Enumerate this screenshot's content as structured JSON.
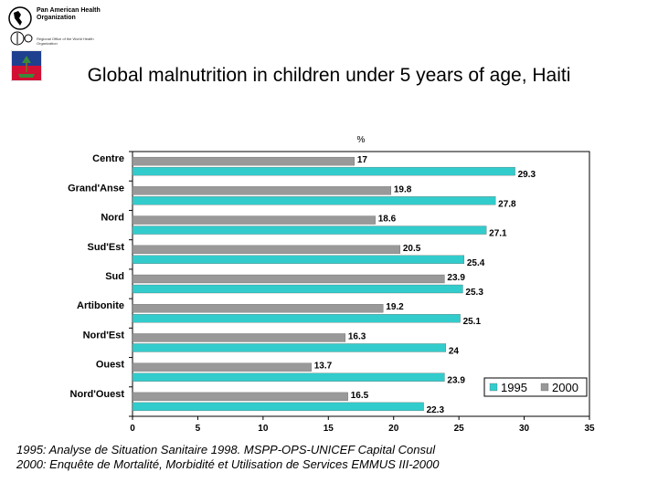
{
  "header": {
    "org_name": "Pan American Health Organization",
    "org_subtitle": "Regional Office of the World Health Organization"
  },
  "chart_data": {
    "type": "bar",
    "orientation": "horizontal",
    "title": "Global malnutrition in children under 5 years of age, Haiti",
    "unit_label": "%",
    "categories": [
      "Centre",
      "Grand'Anse",
      "Nord",
      "Sud'Est",
      "Sud",
      "Artibonite",
      "Nord'Est",
      "Ouest",
      "Nord'Ouest"
    ],
    "series": [
      {
        "name": "2000",
        "color": "#999999",
        "values": [
          17,
          19.8,
          18.6,
          20.5,
          23.9,
          19.2,
          16.3,
          13.7,
          16.5
        ]
      },
      {
        "name": "1995",
        "color": "#33cccc",
        "values": [
          29.3,
          27.8,
          27.1,
          25.4,
          25.3,
          25.1,
          24,
          23.9,
          22.3
        ]
      }
    ],
    "value_labels": [
      [
        "17",
        "19.8",
        "18.6",
        "20.5",
        "23.9",
        "19.2",
        "16.3",
        "13.7",
        "16.5"
      ],
      [
        "29.3",
        "27.8",
        "27.1",
        "25.4",
        "25.3",
        "25.1",
        "24",
        "23.9",
        "22.3"
      ]
    ],
    "legend_order": [
      "1995",
      "2000"
    ],
    "xlim": [
      0,
      35
    ],
    "xticks": [
      0,
      5,
      10,
      15,
      20,
      25,
      30,
      35
    ],
    "grid": false,
    "legend_position": "bottom-right"
  },
  "sources": [
    "1995: Analyse de Situation Sanitaire 1998. MSPP-OPS-UNICEF Capital Consul",
    "2000: Enquête de Mortalité, Morbidité et Utilisation de Services EMMUS III-2000"
  ]
}
